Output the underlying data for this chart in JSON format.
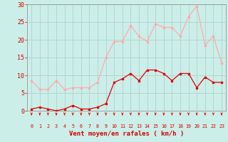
{
  "hours": [
    0,
    1,
    2,
    3,
    4,
    5,
    6,
    7,
    8,
    9,
    10,
    11,
    12,
    13,
    14,
    15,
    16,
    17,
    18,
    19,
    20,
    21,
    22,
    23
  ],
  "wind_mean": [
    0.5,
    1.0,
    0.5,
    0.0,
    0.5,
    1.5,
    0.5,
    0.5,
    1.0,
    2.0,
    8.0,
    9.0,
    10.5,
    8.5,
    11.5,
    11.5,
    10.5,
    8.5,
    10.5,
    10.5,
    6.5,
    9.5,
    8.0,
    8.0
  ],
  "wind_gust": [
    8.5,
    6.0,
    6.0,
    8.5,
    6.0,
    6.5,
    6.5,
    6.5,
    8.0,
    15.0,
    19.5,
    19.5,
    24.0,
    21.0,
    19.5,
    24.5,
    23.5,
    23.5,
    21.0,
    26.5,
    29.5,
    18.5,
    21.0,
    13.5
  ],
  "color_mean": "#dd0000",
  "color_gust": "#ffaaaa",
  "bg_color": "#cceee8",
  "grid_color": "#aacccc",
  "xlabel": "Vent moyen/en rafales ( km/h )",
  "xlabel_color": "#cc0000",
  "tick_color": "#cc0000",
  "ylim": [
    0,
    30
  ],
  "yticks": [
    0,
    5,
    10,
    15,
    20,
    25,
    30
  ]
}
